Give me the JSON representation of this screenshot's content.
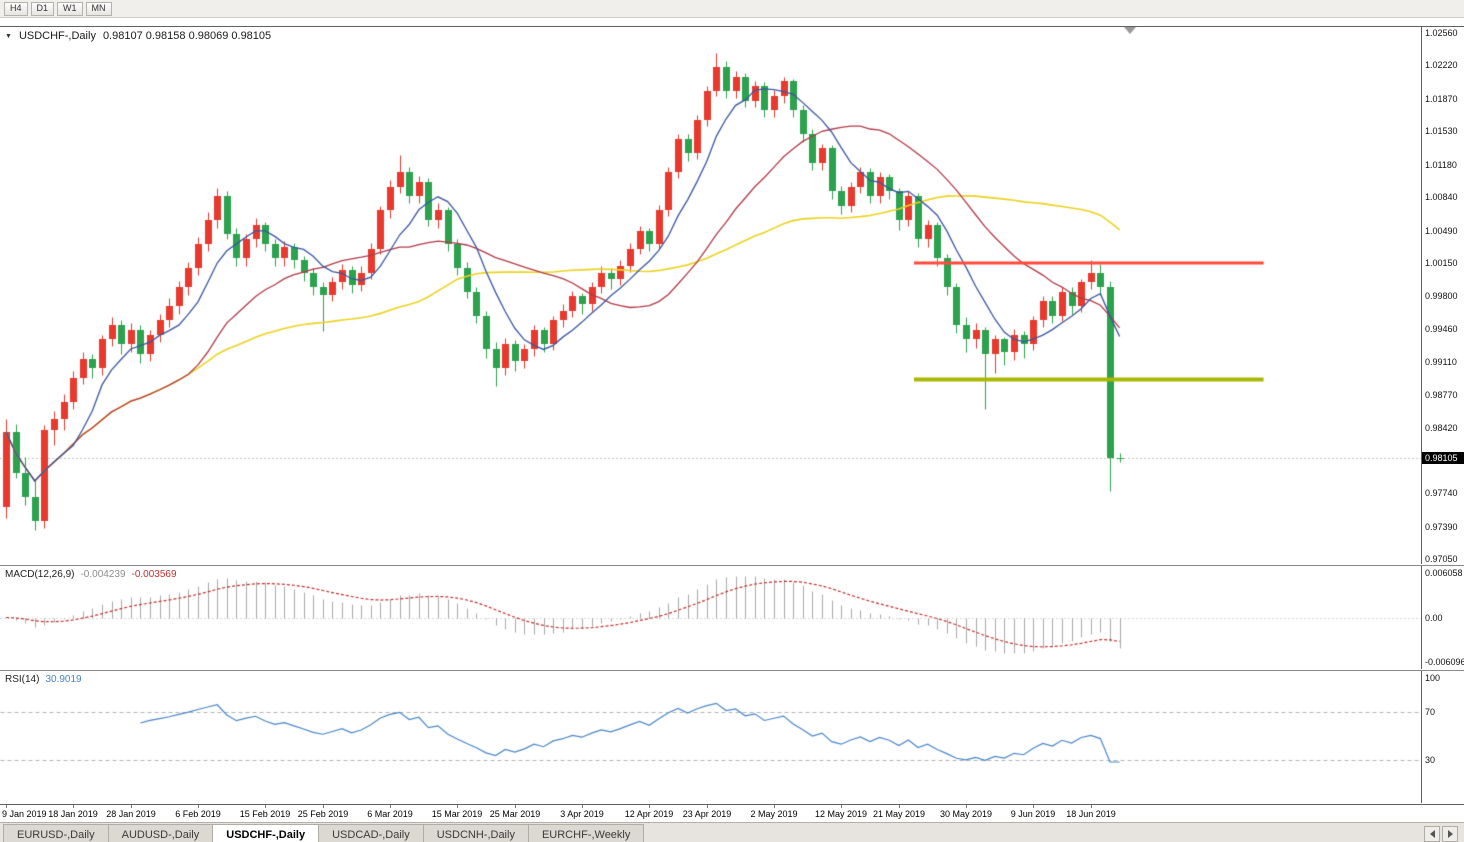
{
  "toolbar": {
    "timeframe_buttons": [
      "H4",
      "D1",
      "W1",
      "MN"
    ]
  },
  "chart": {
    "title": {
      "symbol": "USDCHF-,Daily",
      "ohlc": "0.98107 0.98158 0.98069 0.98105"
    },
    "price_axis": {
      "current_price": "0.98105"
    },
    "colors": {
      "bull": "#e8392e",
      "bear": "#2ca24e",
      "resistance": "#ff4a3d",
      "support": "#a9b800",
      "macd_hist": "#a8a8a8",
      "macd_signal": "#c23030",
      "rsi_line": "#4a86c8",
      "price_line": "#909090",
      "grid_dash": "#b5b5b5",
      "shift_marker": "#999999"
    }
  },
  "chart_data": {
    "type": "candlestick",
    "symbol": "USDCHF",
    "timeframe": "Daily",
    "ylim": [
      0.97,
      1.0262
    ],
    "price_axis_labels": [
      "1.02560",
      "1.02220",
      "1.01870",
      "1.01530",
      "1.01180",
      "1.00840",
      "1.00490",
      "1.00150",
      "0.99800",
      "0.99460",
      "0.99110",
      "0.98770",
      "0.98420",
      "0.97740",
      "0.97390",
      "0.97050"
    ],
    "current_price": 0.98105,
    "x_ticks": [
      {
        "i": 0,
        "label": "9 Jan 2019"
      },
      {
        "i": 7,
        "label": "18 Jan 2019"
      },
      {
        "i": 13,
        "label": "28 Jan 2019"
      },
      {
        "i": 20,
        "label": "6 Feb 2019"
      },
      {
        "i": 27,
        "label": "15 Feb 2019"
      },
      {
        "i": 33,
        "label": "25 Feb 2019"
      },
      {
        "i": 40,
        "label": "6 Mar 2019"
      },
      {
        "i": 47,
        "label": "15 Mar 2019"
      },
      {
        "i": 53,
        "label": "25 Mar 2019"
      },
      {
        "i": 60,
        "label": "3 Apr 2019"
      },
      {
        "i": 67,
        "label": "12 Apr 2019"
      },
      {
        "i": 73,
        "label": "23 Apr 2019"
      },
      {
        "i": 80,
        "label": "2 May 2019"
      },
      {
        "i": 87,
        "label": "12 May 2019"
      },
      {
        "i": 93,
        "label": "21 May 2019"
      },
      {
        "i": 100,
        "label": "30 May 2019"
      },
      {
        "i": 107,
        "label": "9 Jun 2019"
      },
      {
        "i": 113,
        "label": "18 Jun 2019"
      }
    ],
    "candles": [
      [
        0.976,
        0.9852,
        0.9748,
        0.9838
      ],
      [
        0.9838,
        0.9846,
        0.979,
        0.9795
      ],
      [
        0.9795,
        0.9812,
        0.9762,
        0.977
      ],
      [
        0.977,
        0.9788,
        0.9736,
        0.9745
      ],
      [
        0.9745,
        0.9845,
        0.9738,
        0.984
      ],
      [
        0.984,
        0.986,
        0.9825,
        0.9852
      ],
      [
        0.9852,
        0.9878,
        0.984,
        0.987
      ],
      [
        0.987,
        0.9902,
        0.9862,
        0.9895
      ],
      [
        0.9895,
        0.9922,
        0.9888,
        0.9915
      ],
      [
        0.9915,
        0.992,
        0.9895,
        0.9905
      ],
      [
        0.9905,
        0.994,
        0.9898,
        0.9935
      ],
      [
        0.9935,
        0.9958,
        0.9928,
        0.995
      ],
      [
        0.995,
        0.9955,
        0.992,
        0.993
      ],
      [
        0.993,
        0.9952,
        0.9922,
        0.9945
      ],
      [
        0.9945,
        0.995,
        0.991,
        0.992
      ],
      [
        0.992,
        0.9945,
        0.9912,
        0.994
      ],
      [
        0.994,
        0.9962,
        0.9932,
        0.9955
      ],
      [
        0.9955,
        0.9978,
        0.9948,
        0.997
      ],
      [
        0.997,
        0.9996,
        0.9962,
        0.999
      ],
      [
        0.999,
        1.0016,
        0.9982,
        1.001
      ],
      [
        1.001,
        1.0042,
        1.0002,
        1.0035
      ],
      [
        1.0035,
        1.0068,
        1.0028,
        1.006
      ],
      [
        1.006,
        1.0094,
        1.0052,
        1.0085
      ],
      [
        1.0085,
        1.009,
        1.004,
        1.0045
      ],
      [
        1.0045,
        1.0052,
        1.0012,
        1.002
      ],
      [
        1.002,
        1.0045,
        1.0012,
        1.004
      ],
      [
        1.004,
        1.0062,
        1.0032,
        1.0055
      ],
      [
        1.0055,
        1.0058,
        1.0028,
        1.0035
      ],
      [
        1.0035,
        1.004,
        1.0012,
        1.002
      ],
      [
        1.002,
        1.0038,
        1.0012,
        1.0032
      ],
      [
        1.0032,
        1.0036,
        1.001,
        1.0018
      ],
      [
        1.0018,
        1.0022,
        0.9996,
        1.0005
      ],
      [
        1.0005,
        1.001,
        0.9982,
        0.999
      ],
      [
        0.999,
        0.9995,
        0.9944,
        0.9982
      ],
      [
        0.9982,
        1.0,
        0.9975,
        0.9995
      ],
      [
        0.9995,
        1.0014,
        0.9988,
        1.0008
      ],
      [
        1.0008,
        1.0012,
        0.9984,
        0.9992
      ],
      [
        0.9992,
        1.0012,
        0.9986,
        1.0005
      ],
      [
        1.0005,
        1.0036,
        0.9998,
        1.003
      ],
      [
        1.003,
        1.0075,
        1.0024,
        1.007
      ],
      [
        1.007,
        1.0102,
        1.0062,
        1.0095
      ],
      [
        1.0095,
        1.0128,
        1.0088,
        1.011
      ],
      [
        1.011,
        1.0115,
        1.0078,
        1.0085
      ],
      [
        1.0085,
        1.0106,
        1.0078,
        1.01
      ],
      [
        1.01,
        1.0104,
        1.0054,
        1.006
      ],
      [
        1.006,
        1.0078,
        1.0052,
        1.007
      ],
      [
        1.007,
        1.0074,
        1.0028,
        1.0035
      ],
      [
        1.0035,
        1.004,
        1.0002,
        1.001
      ],
      [
        1.001,
        1.0016,
        0.9978,
        0.9985
      ],
      [
        0.9985,
        0.999,
        0.9952,
        0.996
      ],
      [
        0.996,
        0.9965,
        0.9916,
        0.9925
      ],
      [
        0.9925,
        0.9932,
        0.9886,
        0.9905
      ],
      [
        0.9905,
        0.9936,
        0.9898,
        0.993
      ],
      [
        0.993,
        0.9934,
        0.9902,
        0.9912
      ],
      [
        0.9912,
        0.993,
        0.9905,
        0.9925
      ],
      [
        0.9925,
        0.995,
        0.9918,
        0.9945
      ],
      [
        0.9945,
        0.9948,
        0.9922,
        0.993
      ],
      [
        0.993,
        0.996,
        0.9924,
        0.9955
      ],
      [
        0.9955,
        0.9972,
        0.9948,
        0.9965
      ],
      [
        0.9965,
        0.9986,
        0.9958,
        0.998
      ],
      [
        0.998,
        0.9984,
        0.9962,
        0.9972
      ],
      [
        0.9972,
        0.9995,
        0.9965,
        0.999
      ],
      [
        0.999,
        1.0012,
        0.9984,
        1.0005
      ],
      [
        1.0005,
        1.001,
        0.9988,
        0.9998
      ],
      [
        0.9998,
        1.0018,
        0.9992,
        1.0012
      ],
      [
        1.0012,
        1.0036,
        1.0006,
        1.003
      ],
      [
        1.003,
        1.0054,
        1.0024,
        1.0048
      ],
      [
        1.0048,
        1.0052,
        1.0028,
        1.0035
      ],
      [
        1.0035,
        1.0076,
        1.003,
        1.007
      ],
      [
        1.007,
        1.0116,
        1.0064,
        1.011
      ],
      [
        1.011,
        1.015,
        1.0104,
        1.0145
      ],
      [
        1.0145,
        1.015,
        1.0122,
        1.013
      ],
      [
        1.013,
        1.017,
        1.0124,
        1.0165
      ],
      [
        1.0165,
        1.02,
        1.0158,
        1.0195
      ],
      [
        1.0195,
        1.0235,
        1.019,
        1.022
      ],
      [
        1.022,
        1.0226,
        1.0188,
        1.0195
      ],
      [
        1.0195,
        1.0216,
        1.0188,
        1.021
      ],
      [
        1.021,
        1.0214,
        1.0178,
        1.0185
      ],
      [
        1.0185,
        1.0206,
        1.0178,
        1.02
      ],
      [
        1.02,
        1.0204,
        1.0168,
        1.0175
      ],
      [
        1.0175,
        1.0196,
        1.0168,
        1.019
      ],
      [
        1.019,
        1.021,
        1.0182,
        1.0205
      ],
      [
        1.0205,
        1.0208,
        1.0168,
        1.0175
      ],
      [
        1.0175,
        1.018,
        1.0142,
        1.015
      ],
      [
        1.015,
        1.0155,
        1.0112,
        1.012
      ],
      [
        1.012,
        1.014,
        1.0112,
        1.0135
      ],
      [
        1.0135,
        1.0138,
        1.0082,
        1.009
      ],
      [
        1.009,
        1.0096,
        1.0066,
        1.0075
      ],
      [
        1.0075,
        1.01,
        1.0068,
        1.0095
      ],
      [
        1.0095,
        1.0116,
        1.0088,
        1.011
      ],
      [
        1.011,
        1.0114,
        1.0078,
        1.0085
      ],
      [
        1.0085,
        1.011,
        1.0078,
        1.0105
      ],
      [
        1.0105,
        1.0108,
        1.0082,
        1.009
      ],
      [
        1.009,
        1.0094,
        1.005,
        1.006
      ],
      [
        1.006,
        1.009,
        1.0054,
        1.0085
      ],
      [
        1.0085,
        1.0088,
        1.0032,
        1.004
      ],
      [
        1.004,
        1.006,
        1.0032,
        1.0055
      ],
      [
        1.0055,
        1.0058,
        1.0012,
        1.002
      ],
      [
        1.002,
        1.0024,
        0.9982,
        0.999
      ],
      [
        0.999,
        0.9994,
        0.9942,
        0.995
      ],
      [
        0.995,
        0.9958,
        0.9922,
        0.9935
      ],
      [
        0.9935,
        0.9952,
        0.9926,
        0.9945
      ],
      [
        0.9945,
        0.9948,
        0.9862,
        0.992
      ],
      [
        0.992,
        0.994,
        0.99,
        0.9935
      ],
      [
        0.9935,
        0.9938,
        0.9908,
        0.9922
      ],
      [
        0.9922,
        0.9946,
        0.9914,
        0.994
      ],
      [
        0.994,
        0.9944,
        0.9916,
        0.993
      ],
      [
        0.993,
        0.996,
        0.9924,
        0.9955
      ],
      [
        0.9955,
        0.998,
        0.9948,
        0.9975
      ],
      [
        0.9975,
        0.998,
        0.9952,
        0.996
      ],
      [
        0.996,
        0.999,
        0.9954,
        0.9985
      ],
      [
        0.9985,
        0.999,
        0.9962,
        0.997
      ],
      [
        0.997,
        0.9998,
        0.9964,
        0.9995
      ],
      [
        0.9995,
        1.0018,
        0.9988,
        1.0005
      ],
      [
        1.0005,
        1.0014,
        0.9982,
        0.999
      ],
      [
        0.999,
        0.9996,
        0.9776,
        0.9811
      ],
      [
        0.98107,
        0.98158,
        0.98069,
        0.98105
      ]
    ],
    "moving_averages": [
      {
        "name": "fast",
        "period": 7,
        "color": "#3a57a0"
      },
      {
        "name": "mid",
        "period": 20,
        "color": "#b03a48"
      },
      {
        "name": "slow",
        "period": 44,
        "color": "#ecd21e"
      }
    ],
    "levels": [
      {
        "name": "resistance",
        "price": 1.0015,
        "color": "#ff4a3d",
        "width": 3,
        "from_bar": 95,
        "to_bar": 131
      },
      {
        "name": "support",
        "price": 0.9893,
        "color": "#a9b800",
        "width": 4,
        "from_bar": 95,
        "to_bar": 131
      }
    ],
    "macd": {
      "label": "MACD(12,26,9)",
      "value": "-0.004239",
      "signal_value": "-0.003569",
      "params": [
        12,
        26,
        9
      ],
      "axis_labels": [
        "0.006058",
        "0.00",
        "-0.006096"
      ],
      "range": 0.0062
    },
    "rsi": {
      "label": "RSI(14)",
      "value": "30.9019",
      "period": 14,
      "axis_labels": [
        "100",
        "70",
        "30"
      ],
      "level_lines": [
        70,
        30
      ]
    }
  },
  "tabs": {
    "items": [
      {
        "label": "EURUSD-,Daily",
        "active": false
      },
      {
        "label": "AUDUSD-,Daily",
        "active": false
      },
      {
        "label": "USDCHF-,Daily",
        "active": true
      },
      {
        "label": "USDCAD-,Daily",
        "active": false
      },
      {
        "label": "USDCNH-,Daily",
        "active": false
      },
      {
        "label": "EURCHF-,Weekly",
        "active": false
      }
    ]
  }
}
